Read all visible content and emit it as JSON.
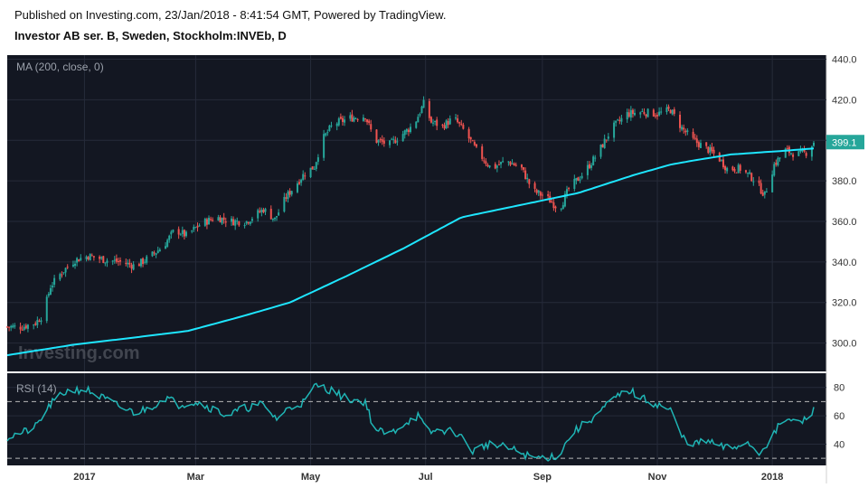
{
  "header": {
    "published": "Published on Investing.com, 23/Jan/2018 - 8:41:54 GMT, Powered by TradingView.",
    "symbol": "Investor AB ser. B, Sweden, Stockholm:INVEb, D"
  },
  "colors": {
    "background": "#131722",
    "up_candle": "#26a69a",
    "down_candle": "#ef5350",
    "ma_line": "#1ee6ff",
    "rsi_line": "#1fb5b5",
    "price_badge": "#26a69a",
    "axis_bg": "#ffffff",
    "grid": "#262b3a"
  },
  "watermark": "Investing.com",
  "chart_data": [
    {
      "type": "candlestick",
      "indicator_label": "MA (200, close, 0)",
      "ylim": [
        286,
        442
      ],
      "y_ticks": [
        300,
        320,
        340,
        360,
        380,
        400,
        420,
        440
      ],
      "y_tick_labels": [
        "300.0",
        "320.0",
        "340.0",
        "360.0",
        "380.0",
        "400.0",
        "420.0",
        "440.0"
      ],
      "last_price_label": "399.1",
      "last_price": 399.1,
      "x_labels": [
        "2017",
        "Mar",
        "May",
        "Jul",
        "Sep",
        "Nov",
        "2018"
      ],
      "x_label_dates": [
        "2017-01-01",
        "2017-03-01",
        "2017-05-01",
        "2017-07-01",
        "2017-09-01",
        "2017-11-01",
        "2018-01-01"
      ],
      "date_range": [
        "2016-11-21",
        "2018-01-23"
      ],
      "close_path": [
        [
          "2016-11-21",
          308
        ],
        [
          "2016-11-29",
          308
        ],
        [
          "2016-12-06",
          310
        ],
        [
          "2016-12-10",
          314
        ],
        [
          "2016-12-14",
          328
        ],
        [
          "2016-12-20",
          335
        ],
        [
          "2016-12-27",
          341
        ],
        [
          "2017-01-03",
          343
        ],
        [
          "2017-01-12",
          341
        ],
        [
          "2017-01-20",
          340
        ],
        [
          "2017-01-28",
          338
        ],
        [
          "2017-02-04",
          342
        ],
        [
          "2017-02-12",
          348
        ],
        [
          "2017-02-18",
          356
        ],
        [
          "2017-02-24",
          353
        ],
        [
          "2017-03-04",
          359
        ],
        [
          "2017-03-12",
          362
        ],
        [
          "2017-03-20",
          360
        ],
        [
          "2017-03-28",
          360
        ],
        [
          "2017-04-06",
          366
        ],
        [
          "2017-04-12",
          361
        ],
        [
          "2017-04-18",
          372
        ],
        [
          "2017-04-28",
          384
        ],
        [
          "2017-05-03",
          387
        ],
        [
          "2017-05-07",
          400
        ],
        [
          "2017-05-13",
          408
        ],
        [
          "2017-05-22",
          411
        ],
        [
          "2017-05-30",
          412
        ],
        [
          "2017-06-04",
          400
        ],
        [
          "2017-06-12",
          398
        ],
        [
          "2017-06-20",
          404
        ],
        [
          "2017-06-25",
          408
        ],
        [
          "2017-06-30",
          418
        ],
        [
          "2017-07-04",
          409
        ],
        [
          "2017-07-10",
          407
        ],
        [
          "2017-07-16",
          411
        ],
        [
          "2017-07-22",
          404
        ],
        [
          "2017-07-28",
          395
        ],
        [
          "2017-08-05",
          386
        ],
        [
          "2017-08-13",
          390
        ],
        [
          "2017-08-21",
          386
        ],
        [
          "2017-08-27",
          375
        ],
        [
          "2017-09-03",
          372
        ],
        [
          "2017-09-10",
          366
        ],
        [
          "2017-09-15",
          376
        ],
        [
          "2017-09-23",
          384
        ],
        [
          "2017-09-30",
          393
        ],
        [
          "2017-10-08",
          406
        ],
        [
          "2017-10-16",
          413
        ],
        [
          "2017-10-24",
          414
        ],
        [
          "2017-11-01",
          413
        ],
        [
          "2017-11-08",
          415
        ],
        [
          "2017-11-14",
          406
        ],
        [
          "2017-11-20",
          400
        ],
        [
          "2017-11-27",
          396
        ],
        [
          "2017-12-03",
          392
        ],
        [
          "2017-12-08",
          386
        ],
        [
          "2017-12-15",
          386
        ],
        [
          "2017-12-22",
          381
        ],
        [
          "2017-12-28",
          373
        ],
        [
          "2018-01-02",
          388
        ],
        [
          "2018-01-08",
          395
        ],
        [
          "2018-01-14",
          393
        ],
        [
          "2018-01-19",
          394
        ],
        [
          "2018-01-23",
          399.1
        ]
      ],
      "ma_path": [
        [
          "2016-11-21",
          294
        ],
        [
          "2016-12-25",
          299
        ],
        [
          "2017-01-30",
          303
        ],
        [
          "2017-02-25",
          306
        ],
        [
          "2017-03-25",
          313
        ],
        [
          "2017-04-20",
          320
        ],
        [
          "2017-05-20",
          333
        ],
        [
          "2017-06-20",
          347
        ],
        [
          "2017-07-20",
          362
        ],
        [
          "2017-08-20",
          368
        ],
        [
          "2017-09-20",
          374
        ],
        [
          "2017-10-20",
          383
        ],
        [
          "2017-11-08",
          388
        ],
        [
          "2017-11-20",
          390
        ],
        [
          "2017-12-10",
          393
        ],
        [
          "2018-01-10",
          395
        ],
        [
          "2018-01-23",
          396
        ]
      ]
    },
    {
      "type": "line",
      "indicator_label": "RSI (14)",
      "ylim": [
        25,
        90
      ],
      "y_ticks": [
        40,
        60,
        80
      ],
      "y_tick_labels": [
        "40",
        "60",
        "80"
      ],
      "bands": [
        70,
        30
      ],
      "rsi_path": [
        [
          "2016-11-21",
          45
        ],
        [
          "2016-11-29",
          48
        ],
        [
          "2016-12-06",
          52
        ],
        [
          "2016-12-14",
          68
        ],
        [
          "2016-12-22",
          77
        ],
        [
          "2017-01-01",
          79
        ],
        [
          "2017-01-10",
          73
        ],
        [
          "2017-01-20",
          66
        ],
        [
          "2017-01-28",
          62
        ],
        [
          "2017-02-05",
          66
        ],
        [
          "2017-02-13",
          73
        ],
        [
          "2017-02-20",
          68
        ],
        [
          "2017-03-01",
          70
        ],
        [
          "2017-03-10",
          65
        ],
        [
          "2017-03-18",
          60
        ],
        [
          "2017-03-26",
          65
        ],
        [
          "2017-04-05",
          68
        ],
        [
          "2017-04-13",
          58
        ],
        [
          "2017-04-20",
          66
        ],
        [
          "2017-04-28",
          70
        ],
        [
          "2017-05-04",
          82
        ],
        [
          "2017-05-12",
          78
        ],
        [
          "2017-05-20",
          72
        ],
        [
          "2017-05-30",
          70
        ],
        [
          "2017-06-04",
          50
        ],
        [
          "2017-06-12",
          47
        ],
        [
          "2017-06-20",
          55
        ],
        [
          "2017-06-27",
          60
        ],
        [
          "2017-07-02",
          48
        ],
        [
          "2017-07-10",
          50
        ],
        [
          "2017-07-18",
          48
        ],
        [
          "2017-07-26",
          35
        ],
        [
          "2017-08-03",
          40
        ],
        [
          "2017-08-11",
          38
        ],
        [
          "2017-08-19",
          35
        ],
        [
          "2017-08-27",
          30
        ],
        [
          "2017-09-04",
          31
        ],
        [
          "2017-09-10",
          32
        ],
        [
          "2017-09-16",
          47
        ],
        [
          "2017-09-24",
          55
        ],
        [
          "2017-10-01",
          62
        ],
        [
          "2017-10-09",
          72
        ],
        [
          "2017-10-17",
          78
        ],
        [
          "2017-10-24",
          72
        ],
        [
          "2017-11-01",
          68
        ],
        [
          "2017-11-08",
          64
        ],
        [
          "2017-11-14",
          45
        ],
        [
          "2017-11-20",
          40
        ],
        [
          "2017-11-28",
          42
        ],
        [
          "2017-12-05",
          38
        ],
        [
          "2017-12-11",
          37
        ],
        [
          "2017-12-18",
          42
        ],
        [
          "2017-12-25",
          34
        ],
        [
          "2018-01-01",
          45
        ],
        [
          "2018-01-07",
          58
        ],
        [
          "2018-01-13",
          55
        ],
        [
          "2018-01-19",
          57
        ],
        [
          "2018-01-23",
          64
        ]
      ]
    }
  ]
}
